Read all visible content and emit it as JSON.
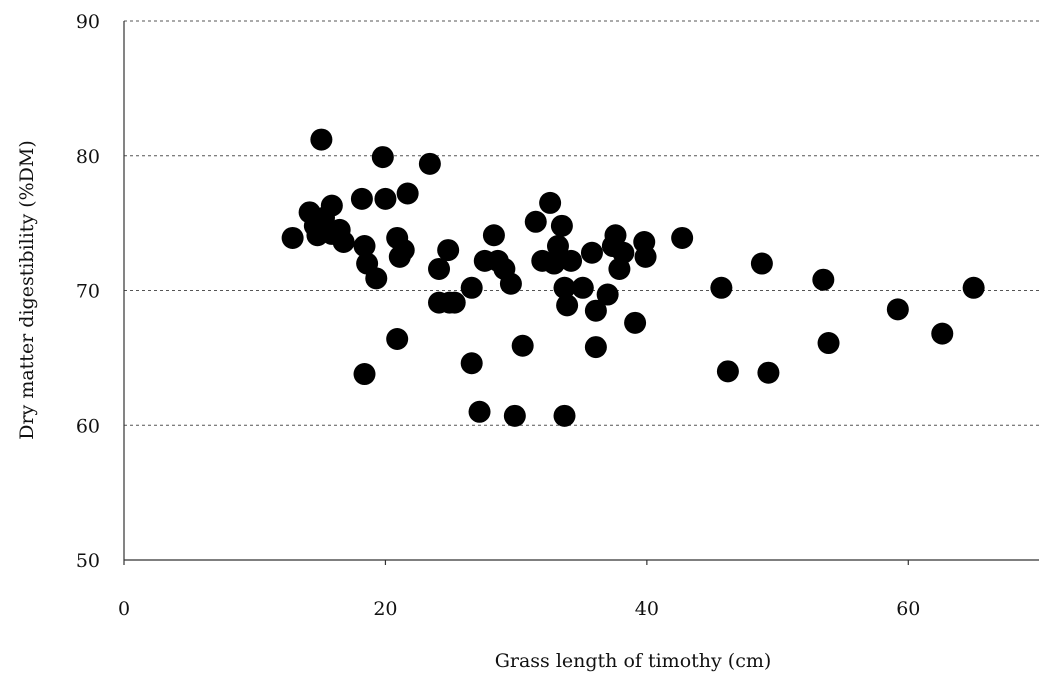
{
  "chart_data": {
    "type": "scatter",
    "xlabel": "Grass length of timothy (cm)",
    "ylabel": "Dry matter digestibility (%DM)",
    "xlim": [
      0,
      70
    ],
    "ylim": [
      50,
      90
    ],
    "x_ticks": [
      0,
      20,
      40,
      60
    ],
    "y_ticks": [
      50,
      60,
      70,
      80,
      90
    ],
    "x_tick_labels": [
      "0",
      "20",
      "40",
      "60"
    ],
    "y_tick_labels": [
      "50",
      "60",
      "70",
      "80",
      "90"
    ],
    "grid": "horizontal dashed at 60, 70, 80, 90",
    "legend": "none",
    "marker_color": "#000000",
    "points": [
      {
        "x": 15.1,
        "y": 81.2
      },
      {
        "x": 19.8,
        "y": 79.9
      },
      {
        "x": 23.4,
        "y": 79.4
      },
      {
        "x": 12.9,
        "y": 73.9
      },
      {
        "x": 14.2,
        "y": 75.8
      },
      {
        "x": 14.6,
        "y": 74.8
      },
      {
        "x": 14.8,
        "y": 74.1
      },
      {
        "x": 15.3,
        "y": 75.4
      },
      {
        "x": 15.9,
        "y": 76.3
      },
      {
        "x": 15.9,
        "y": 74.2
      },
      {
        "x": 16.5,
        "y": 74.5
      },
      {
        "x": 16.8,
        "y": 73.6
      },
      {
        "x": 18.2,
        "y": 76.8
      },
      {
        "x": 18.4,
        "y": 73.3
      },
      {
        "x": 18.6,
        "y": 72.0
      },
      {
        "x": 19.3,
        "y": 70.9
      },
      {
        "x": 20.0,
        "y": 76.8
      },
      {
        "x": 20.9,
        "y": 73.9
      },
      {
        "x": 21.1,
        "y": 72.5
      },
      {
        "x": 21.4,
        "y": 73.0
      },
      {
        "x": 21.7,
        "y": 77.2
      },
      {
        "x": 18.4,
        "y": 63.8
      },
      {
        "x": 20.9,
        "y": 66.4
      },
      {
        "x": 24.1,
        "y": 71.6
      },
      {
        "x": 24.1,
        "y": 69.1
      },
      {
        "x": 24.8,
        "y": 73.0
      },
      {
        "x": 24.9,
        "y": 69.1
      },
      {
        "x": 25.3,
        "y": 69.1
      },
      {
        "x": 26.6,
        "y": 70.2
      },
      {
        "x": 26.6,
        "y": 64.6
      },
      {
        "x": 27.2,
        "y": 61.0
      },
      {
        "x": 27.6,
        "y": 72.2
      },
      {
        "x": 28.3,
        "y": 74.1
      },
      {
        "x": 28.6,
        "y": 72.2
      },
      {
        "x": 29.1,
        "y": 71.6
      },
      {
        "x": 29.6,
        "y": 70.5
      },
      {
        "x": 29.9,
        "y": 60.7
      },
      {
        "x": 30.5,
        "y": 65.9
      },
      {
        "x": 31.5,
        "y": 75.1
      },
      {
        "x": 32.0,
        "y": 72.2
      },
      {
        "x": 32.6,
        "y": 76.5
      },
      {
        "x": 32.9,
        "y": 72.0
      },
      {
        "x": 33.2,
        "y": 73.3
      },
      {
        "x": 33.5,
        "y": 74.8
      },
      {
        "x": 33.7,
        "y": 70.2
      },
      {
        "x": 33.7,
        "y": 60.7
      },
      {
        "x": 33.9,
        "y": 68.9
      },
      {
        "x": 34.2,
        "y": 72.2
      },
      {
        "x": 35.1,
        "y": 70.2
      },
      {
        "x": 35.8,
        "y": 72.8
      },
      {
        "x": 36.1,
        "y": 68.5
      },
      {
        "x": 36.1,
        "y": 65.8
      },
      {
        "x": 37.0,
        "y": 69.7
      },
      {
        "x": 37.4,
        "y": 73.3
      },
      {
        "x": 37.6,
        "y": 74.1
      },
      {
        "x": 37.9,
        "y": 71.6
      },
      {
        "x": 38.2,
        "y": 72.8
      },
      {
        "x": 39.1,
        "y": 67.6
      },
      {
        "x": 39.8,
        "y": 73.6
      },
      {
        "x": 39.9,
        "y": 72.5
      },
      {
        "x": 42.7,
        "y": 73.9
      },
      {
        "x": 45.7,
        "y": 70.2
      },
      {
        "x": 46.2,
        "y": 64.0
      },
      {
        "x": 48.8,
        "y": 72.0
      },
      {
        "x": 49.3,
        "y": 63.9
      },
      {
        "x": 53.5,
        "y": 70.8
      },
      {
        "x": 53.9,
        "y": 66.1
      },
      {
        "x": 59.2,
        "y": 68.6
      },
      {
        "x": 62.6,
        "y": 66.8
      },
      {
        "x": 65.0,
        "y": 70.2
      }
    ]
  }
}
